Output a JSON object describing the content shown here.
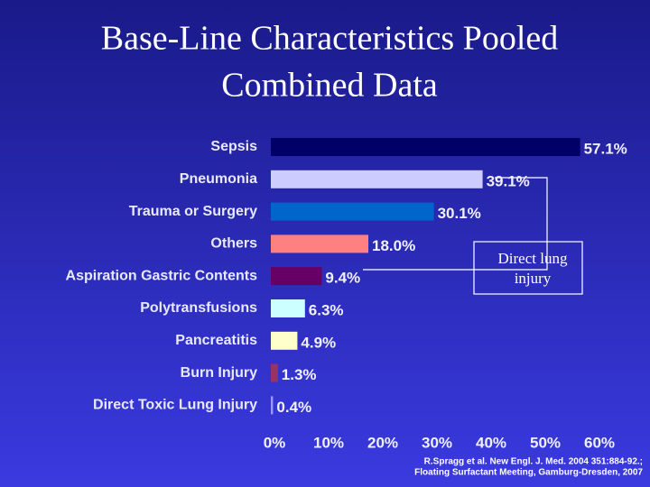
{
  "chart_data": {
    "type": "bar",
    "orientation": "horizontal",
    "title": [
      "Base-Line Characteristics Pooled",
      "Combined Data"
    ],
    "categories": [
      "Sepsis",
      "Pneumonia",
      "Trauma or Surgery",
      "Others",
      "Aspiration Gastric Contents",
      "Polytransfusions",
      "Pancreatitis",
      "Burn Injury",
      "Direct Toxic Lung Injury"
    ],
    "values": [
      57.1,
      39.1,
      30.1,
      18.0,
      9.4,
      6.3,
      4.9,
      1.3,
      0.4
    ],
    "value_labels": [
      "57.1%",
      "39.1%",
      "30.1%",
      "18.0%",
      "9.4%",
      "6.3%",
      "4.9%",
      "1.3%",
      "0.4%"
    ],
    "colors": [
      "#000066",
      "#ccccff",
      "#0066cc",
      "#ff8080",
      "#660066",
      "#ccffff",
      "#ffffcc",
      "#993366",
      "#9999ff"
    ],
    "xlim": [
      0,
      60
    ],
    "xticks": [
      {
        "value": 0,
        "label": "0%"
      },
      {
        "value": 10,
        "label": "10%"
      },
      {
        "value": 20,
        "label": "20%"
      },
      {
        "value": 30,
        "label": "30%"
      },
      {
        "value": 40,
        "label": "40%"
      },
      {
        "value": 50,
        "label": "50%"
      },
      {
        "value": 60,
        "label": "60%"
      }
    ],
    "annotation": "Direct lung injury",
    "source": [
      "R.Spragg et al. New Engl. J. Med. 2004 351:884-92.;",
      "Floating Surfactant Meeting, Gamburg-Dresden, 2007"
    ]
  }
}
